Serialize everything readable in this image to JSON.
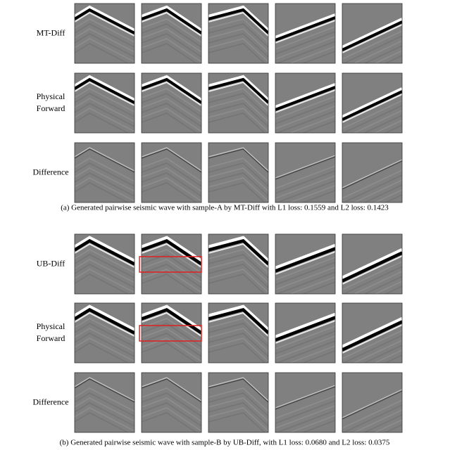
{
  "panels": [
    {
      "rows": [
        {
          "label": [
            "MT-Diff"
          ]
        },
        {
          "label": [
            "Physical",
            "Forward"
          ]
        },
        {
          "label": [
            "Difference"
          ]
        }
      ],
      "caption": "(a) Generated pairwise seismic wave with sample-A by MT-Diff with L1 loss: 0.1559 and L2 loss: 0.1423"
    },
    {
      "rows": [
        {
          "label": [
            "UB-Diff"
          ]
        },
        {
          "label": [
            "Physical",
            "Forward"
          ]
        },
        {
          "label": [
            "Difference"
          ]
        }
      ],
      "caption": "(b) Generated pairwise seismic wave with sample-B by UB-Diff, with L1 loss: 0.0680 and L2 loss: 0.0375"
    }
  ]
}
